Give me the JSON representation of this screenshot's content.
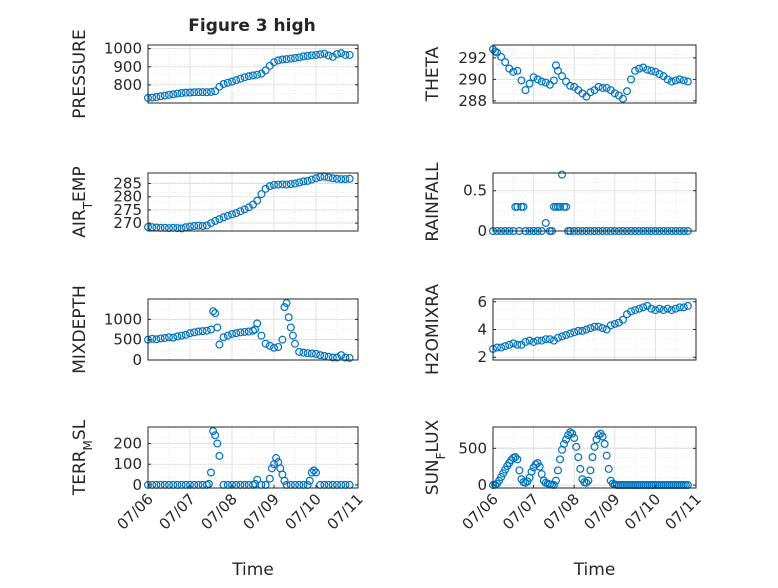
{
  "figure_title": "Figure 3 high",
  "colors": {
    "marker": "#0072BD",
    "axis": "#262626",
    "grid": "#dcdcdc"
  },
  "chart_data": [
    {
      "id": "pressure",
      "type": "scatter",
      "title": "Figure 3 high",
      "ylabel": "PRESSURE",
      "ylabel_sub": "",
      "ylabel_rest": "",
      "xlabel": "",
      "ylim": [
        700,
        1020
      ],
      "yticks": [
        800,
        900,
        1000
      ],
      "ytick_labels": [
        "800",
        "900",
        "1000"
      ],
      "xlim": [
        0,
        5
      ],
      "xticks": [],
      "xtick_labels": [],
      "grid": true,
      "legend": "none",
      "x": [
        0.0,
        0.1,
        0.2,
        0.3,
        0.4,
        0.5,
        0.6,
        0.7,
        0.8,
        0.9,
        1.0,
        1.1,
        1.2,
        1.3,
        1.4,
        1.5,
        1.6,
        1.7,
        1.8,
        1.9,
        2.0,
        2.1,
        2.2,
        2.3,
        2.4,
        2.5,
        2.6,
        2.7,
        2.8,
        2.9,
        3.0,
        3.1,
        3.2,
        3.3,
        3.4,
        3.5,
        3.6,
        3.7,
        3.8,
        3.9,
        4.0,
        4.1,
        4.2,
        4.3,
        4.4,
        4.5,
        4.6,
        4.7,
        4.8
      ],
      "y": [
        728,
        730,
        733,
        737,
        741,
        745,
        748,
        752,
        755,
        757,
        758,
        759,
        760,
        760,
        759,
        761,
        765,
        790,
        805,
        812,
        818,
        826,
        834,
        842,
        848,
        852,
        856,
        862,
        880,
        905,
        925,
        935,
        940,
        942,
        945,
        948,
        952,
        957,
        960,
        963,
        965,
        968,
        972,
        962,
        955,
        970,
        975,
        965,
        965
      ]
    },
    {
      "id": "theta",
      "type": "scatter",
      "title": "",
      "ylabel": "THETA",
      "ylabel_sub": "",
      "ylabel_rest": "",
      "xlabel": "",
      "ylim": [
        287.8,
        293.2
      ],
      "yticks": [
        288,
        290,
        292
      ],
      "ytick_labels": [
        "288",
        "290",
        "292"
      ],
      "xlim": [
        0,
        5
      ],
      "xticks": [],
      "xtick_labels": [],
      "grid": true,
      "legend": "none",
      "x": [
        0.0,
        0.05,
        0.1,
        0.2,
        0.3,
        0.4,
        0.5,
        0.6,
        0.7,
        0.8,
        0.9,
        1.0,
        1.1,
        1.2,
        1.3,
        1.4,
        1.5,
        1.55,
        1.6,
        1.7,
        1.8,
        1.9,
        2.0,
        2.1,
        2.2,
        2.3,
        2.4,
        2.5,
        2.6,
        2.7,
        2.8,
        2.9,
        3.0,
        3.1,
        3.2,
        3.3,
        3.4,
        3.5,
        3.6,
        3.7,
        3.8,
        3.9,
        4.0,
        4.1,
        4.2,
        4.3,
        4.4,
        4.5,
        4.6,
        4.7,
        4.8
      ],
      "y": [
        292.8,
        292.6,
        292.5,
        292.1,
        291.6,
        291.0,
        290.7,
        290.8,
        289.9,
        289.0,
        289.6,
        290.2,
        290.0,
        289.8,
        289.7,
        289.5,
        289.9,
        291.3,
        290.8,
        290.3,
        289.8,
        289.4,
        289.3,
        289.0,
        288.7,
        288.4,
        288.8,
        289.0,
        289.3,
        289.2,
        289.2,
        289.0,
        288.7,
        288.5,
        288.2,
        288.9,
        290.0,
        290.8,
        291.0,
        291.1,
        290.9,
        290.8,
        290.7,
        290.5,
        290.3,
        290.0,
        289.8,
        289.9,
        290.0,
        289.9,
        289.8
      ]
    },
    {
      "id": "air_temp",
      "type": "scatter",
      "title": "",
      "ylabel": "AIR",
      "ylabel_sub": "T",
      "ylabel_rest": "EMP",
      "xlabel": "",
      "ylim": [
        267,
        289
      ],
      "yticks": [
        270,
        275,
        280,
        285
      ],
      "ytick_labels": [
        "270",
        "275",
        "280",
        "285"
      ],
      "xlim": [
        0,
        5
      ],
      "xticks": [],
      "xtick_labels": [],
      "grid": true,
      "legend": "none",
      "x": [
        0.0,
        0.1,
        0.2,
        0.3,
        0.4,
        0.5,
        0.6,
        0.7,
        0.8,
        0.9,
        1.0,
        1.1,
        1.2,
        1.3,
        1.4,
        1.5,
        1.6,
        1.7,
        1.8,
        1.9,
        2.0,
        2.1,
        2.2,
        2.3,
        2.4,
        2.5,
        2.6,
        2.7,
        2.8,
        2.9,
        3.0,
        3.1,
        3.2,
        3.3,
        3.4,
        3.5,
        3.6,
        3.7,
        3.8,
        3.9,
        4.0,
        4.1,
        4.2,
        4.3,
        4.4,
        4.5,
        4.6,
        4.7,
        4.8
      ],
      "y": [
        268.5,
        268.4,
        268.3,
        268.2,
        268.2,
        268.1,
        268.2,
        268.1,
        268.0,
        268.4,
        268.7,
        268.9,
        269.0,
        268.9,
        269.1,
        270.0,
        270.8,
        271.5,
        272.2,
        272.8,
        273.3,
        273.8,
        274.5,
        275.2,
        276.0,
        277.0,
        278.5,
        281.0,
        283.0,
        284.0,
        284.5,
        284.6,
        284.7,
        284.6,
        284.8,
        285.0,
        285.4,
        285.8,
        286.0,
        286.5,
        287.0,
        287.5,
        287.6,
        287.3,
        287.0,
        286.8,
        286.7,
        286.7,
        286.8
      ]
    },
    {
      "id": "rainfall",
      "type": "scatter",
      "title": "",
      "ylabel": "RAINFALL",
      "ylabel_sub": "",
      "ylabel_rest": "",
      "xlabel": "",
      "ylim": [
        0,
        0.72
      ],
      "yticks": [
        0,
        0.5
      ],
      "ytick_labels": [
        "0",
        "0.5"
      ],
      "xlim": [
        0,
        5
      ],
      "xticks": [],
      "xtick_labels": [],
      "grid": true,
      "legend": "none",
      "x": [
        0.0,
        0.1,
        0.2,
        0.3,
        0.4,
        0.5,
        0.55,
        0.6,
        0.65,
        0.7,
        0.75,
        0.8,
        0.9,
        1.0,
        1.1,
        1.2,
        1.3,
        1.4,
        1.45,
        1.5,
        1.55,
        1.6,
        1.65,
        1.7,
        1.75,
        1.8,
        1.85,
        1.9,
        2.0,
        2.1,
        2.2,
        2.3,
        2.4,
        2.5,
        2.6,
        2.7,
        2.8,
        2.9,
        3.0,
        3.1,
        3.2,
        3.3,
        3.4,
        3.5,
        3.6,
        3.7,
        3.8,
        3.9,
        4.0,
        4.1,
        4.2,
        4.3,
        4.4,
        4.5,
        4.6,
        4.7,
        4.8
      ],
      "y": [
        0,
        0,
        0,
        0,
        0,
        0,
        0.3,
        0.3,
        0,
        0.3,
        0.3,
        0,
        0,
        0,
        0,
        0,
        0.1,
        0,
        0,
        0.3,
        0.3,
        0.3,
        0.3,
        0.7,
        0.3,
        0.3,
        0,
        0,
        0,
        0,
        0,
        0,
        0,
        0,
        0,
        0,
        0,
        0,
        0,
        0,
        0,
        0,
        0,
        0,
        0,
        0,
        0,
        0,
        0,
        0,
        0,
        0,
        0,
        0,
        0,
        0,
        0
      ]
    },
    {
      "id": "mixdepth",
      "type": "scatter",
      "title": "",
      "ylabel": "MIXDEPTH",
      "ylabel_sub": "",
      "ylabel_rest": "",
      "xlabel": "",
      "ylim": [
        0,
        1500
      ],
      "yticks": [
        0,
        500,
        1000
      ],
      "ytick_labels": [
        "0",
        "500",
        "1000"
      ],
      "xlim": [
        0,
        5
      ],
      "xticks": [],
      "xtick_labels": [],
      "grid": true,
      "legend": "none",
      "x": [
        0.0,
        0.1,
        0.2,
        0.3,
        0.4,
        0.5,
        0.6,
        0.7,
        0.8,
        0.9,
        1.0,
        1.1,
        1.2,
        1.3,
        1.4,
        1.5,
        1.55,
        1.6,
        1.65,
        1.7,
        1.8,
        1.9,
        2.0,
        2.1,
        2.2,
        2.3,
        2.4,
        2.5,
        2.55,
        2.6,
        2.7,
        2.8,
        2.9,
        3.0,
        3.1,
        3.2,
        3.25,
        3.3,
        3.35,
        3.4,
        3.45,
        3.5,
        3.6,
        3.7,
        3.8,
        3.9,
        4.0,
        4.1,
        4.2,
        4.3,
        4.4,
        4.5,
        4.6,
        4.7,
        4.8
      ],
      "y": [
        500,
        520,
        510,
        530,
        540,
        560,
        550,
        580,
        600,
        620,
        660,
        680,
        700,
        710,
        720,
        750,
        1200,
        1150,
        800,
        380,
        560,
        600,
        640,
        660,
        680,
        690,
        700,
        720,
        750,
        900,
        600,
        400,
        350,
        300,
        320,
        500,
        1300,
        1400,
        1050,
        800,
        600,
        400,
        200,
        180,
        170,
        160,
        150,
        120,
        100,
        80,
        60,
        60,
        120,
        60,
        50
      ]
    },
    {
      "id": "h2omixra",
      "type": "scatter",
      "title": "",
      "ylabel": "H2OMIXRA",
      "ylabel_sub": "",
      "ylabel_rest": "",
      "xlabel": "",
      "ylim": [
        1.8,
        6.2
      ],
      "yticks": [
        2,
        4,
        6
      ],
      "ytick_labels": [
        "2",
        "4",
        "6"
      ],
      "xlim": [
        0,
        5
      ],
      "xticks": [],
      "xtick_labels": [],
      "grid": true,
      "legend": "none",
      "x": [
        0.0,
        0.1,
        0.2,
        0.3,
        0.4,
        0.5,
        0.6,
        0.7,
        0.8,
        0.9,
        1.0,
        1.1,
        1.2,
        1.3,
        1.4,
        1.5,
        1.6,
        1.7,
        1.8,
        1.9,
        2.0,
        2.1,
        2.2,
        2.3,
        2.4,
        2.5,
        2.6,
        2.7,
        2.8,
        2.9,
        3.0,
        3.1,
        3.2,
        3.3,
        3.4,
        3.5,
        3.6,
        3.7,
        3.8,
        3.9,
        4.0,
        4.1,
        4.2,
        4.3,
        4.4,
        4.5,
        4.6,
        4.7,
        4.8
      ],
      "y": [
        2.6,
        2.7,
        2.7,
        2.8,
        2.9,
        3.0,
        2.9,
        2.9,
        3.1,
        3.2,
        3.1,
        3.2,
        3.2,
        3.3,
        3.3,
        3.2,
        3.4,
        3.5,
        3.6,
        3.7,
        3.8,
        3.9,
        3.9,
        4.0,
        4.1,
        4.2,
        4.2,
        4.1,
        4.0,
        4.3,
        4.4,
        4.5,
        4.7,
        5.1,
        5.3,
        5.4,
        5.5,
        5.6,
        5.7,
        5.5,
        5.4,
        5.5,
        5.4,
        5.5,
        5.4,
        5.5,
        5.6,
        5.6,
        5.7
      ]
    },
    {
      "id": "terr_msl",
      "type": "scatter",
      "title": "",
      "ylabel": "TERR",
      "ylabel_sub": "M",
      "ylabel_rest": "SL",
      "xlabel": "Time",
      "ylim": [
        -15,
        280
      ],
      "yticks": [
        0,
        100,
        200
      ],
      "ytick_labels": [
        "0",
        "100",
        "200"
      ],
      "xlim": [
        0,
        5
      ],
      "xticks": [
        0,
        1,
        2,
        3,
        4,
        5
      ],
      "xtick_labels": [
        "07/06",
        "07/07",
        "07/08",
        "07/09",
        "07/10",
        "07/11"
      ],
      "grid": true,
      "legend": "none",
      "x": [
        0.0,
        0.1,
        0.2,
        0.3,
        0.4,
        0.5,
        0.6,
        0.7,
        0.8,
        0.9,
        1.0,
        1.1,
        1.2,
        1.3,
        1.4,
        1.45,
        1.5,
        1.55,
        1.6,
        1.65,
        1.7,
        1.8,
        1.9,
        2.0,
        2.1,
        2.2,
        2.3,
        2.4,
        2.5,
        2.55,
        2.6,
        2.7,
        2.8,
        2.9,
        2.95,
        3.0,
        3.05,
        3.1,
        3.15,
        3.2,
        3.25,
        3.3,
        3.4,
        3.5,
        3.6,
        3.7,
        3.8,
        3.85,
        3.9,
        3.95,
        4.0,
        4.1,
        4.2,
        4.3,
        4.4,
        4.5,
        4.6,
        4.7,
        4.8
      ],
      "y": [
        0,
        0,
        0,
        0,
        0,
        0,
        0,
        0,
        0,
        0,
        0,
        0,
        0,
        0,
        0,
        5,
        60,
        260,
        240,
        200,
        140,
        0,
        0,
        0,
        0,
        0,
        0,
        0,
        0,
        5,
        25,
        0,
        0,
        30,
        80,
        100,
        130,
        110,
        80,
        50,
        20,
        0,
        0,
        0,
        0,
        0,
        0,
        20,
        60,
        70,
        60,
        0,
        0,
        0,
        0,
        0,
        0,
        0,
        0
      ]
    },
    {
      "id": "sun_flux",
      "type": "scatter",
      "title": "",
      "ylabel": "SUN",
      "ylabel_sub": "F",
      "ylabel_rest": "LUX",
      "xlabel": "Time",
      "ylim": [
        -40,
        790
      ],
      "yticks": [
        0,
        500
      ],
      "ytick_labels": [
        "0",
        "500"
      ],
      "xlim": [
        0,
        5
      ],
      "xticks": [
        0,
        1,
        2,
        3,
        4,
        5
      ],
      "xtick_labels": [
        "07/06",
        "07/07",
        "07/08",
        "07/09",
        "07/10",
        "07/11"
      ],
      "grid": true,
      "legend": "none",
      "x": [
        0.0,
        0.05,
        0.1,
        0.15,
        0.2,
        0.25,
        0.3,
        0.35,
        0.4,
        0.45,
        0.5,
        0.55,
        0.6,
        0.65,
        0.7,
        0.75,
        0.8,
        0.85,
        0.9,
        0.95,
        1.0,
        1.05,
        1.1,
        1.15,
        1.2,
        1.25,
        1.3,
        1.35,
        1.4,
        1.45,
        1.5,
        1.55,
        1.6,
        1.65,
        1.7,
        1.75,
        1.8,
        1.85,
        1.9,
        1.95,
        2.0,
        2.05,
        2.1,
        2.15,
        2.2,
        2.25,
        2.3,
        2.35,
        2.4,
        2.45,
        2.5,
        2.55,
        2.6,
        2.65,
        2.7,
        2.75,
        2.8,
        2.85,
        2.9,
        2.95,
        3.0,
        3.05,
        3.1,
        3.15,
        3.2,
        3.25,
        3.3,
        3.35,
        3.4,
        3.45,
        3.5,
        3.55,
        3.6,
        3.65,
        3.7,
        3.75,
        3.8,
        3.85,
        3.9,
        3.95,
        4.0,
        4.05,
        4.1,
        4.15,
        4.2,
        4.25,
        4.3,
        4.35,
        4.4,
        4.45,
        4.5,
        4.55,
        4.6,
        4.65,
        4.7,
        4.75,
        4.8
      ],
      "y": [
        0,
        5,
        20,
        60,
        110,
        160,
        210,
        260,
        300,
        340,
        370,
        380,
        350,
        200,
        80,
        40,
        30,
        50,
        100,
        180,
        240,
        280,
        300,
        250,
        150,
        60,
        30,
        20,
        10,
        5,
        0,
        60,
        200,
        350,
        480,
        560,
        620,
        680,
        720,
        700,
        640,
        520,
        380,
        220,
        80,
        40,
        30,
        60,
        200,
        380,
        520,
        620,
        680,
        700,
        660,
        560,
        400,
        220,
        60,
        20,
        10,
        0,
        0,
        0,
        0,
        0,
        0,
        0,
        0,
        0,
        0,
        0,
        0,
        0,
        0,
        0,
        0,
        0,
        0,
        0,
        0,
        0,
        0,
        0,
        0,
        0,
        0,
        0,
        0,
        0,
        0,
        0,
        0,
        0,
        0,
        0,
        0
      ]
    }
  ]
}
